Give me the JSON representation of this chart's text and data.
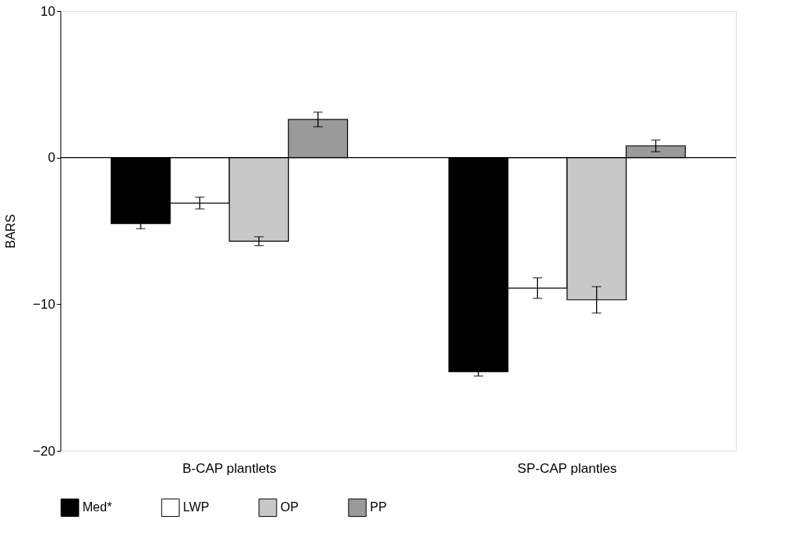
{
  "chart_data": {
    "type": "bar",
    "ylabel": "BARS",
    "categories": [
      "B-CAP  plantlets",
      "SP-CAP  plantles"
    ],
    "series": [
      {
        "name": "Med*",
        "color": "#000000",
        "values": [
          -4.5,
          -14.6
        ],
        "errors": [
          0.35,
          0.3
        ]
      },
      {
        "name": "LWP",
        "color": "#ffffff",
        "values": [
          -3.1,
          -8.9
        ],
        "errors": [
          0.4,
          0.7
        ]
      },
      {
        "name": "OP",
        "color": "#c8c8c8",
        "values": [
          -5.7,
          -9.7
        ],
        "errors": [
          0.3,
          0.9
        ]
      },
      {
        "name": "PP",
        "color": "#9a9a9a",
        "values": [
          2.6,
          0.8
        ],
        "errors": [
          0.5,
          0.4
        ]
      }
    ],
    "ylim": [
      -20,
      10
    ],
    "yticks": [
      -20,
      -10,
      0,
      10
    ],
    "ref_lines": [
      {
        "axis": "y",
        "value": 0
      }
    ],
    "grid": false,
    "legend": "bottom"
  }
}
